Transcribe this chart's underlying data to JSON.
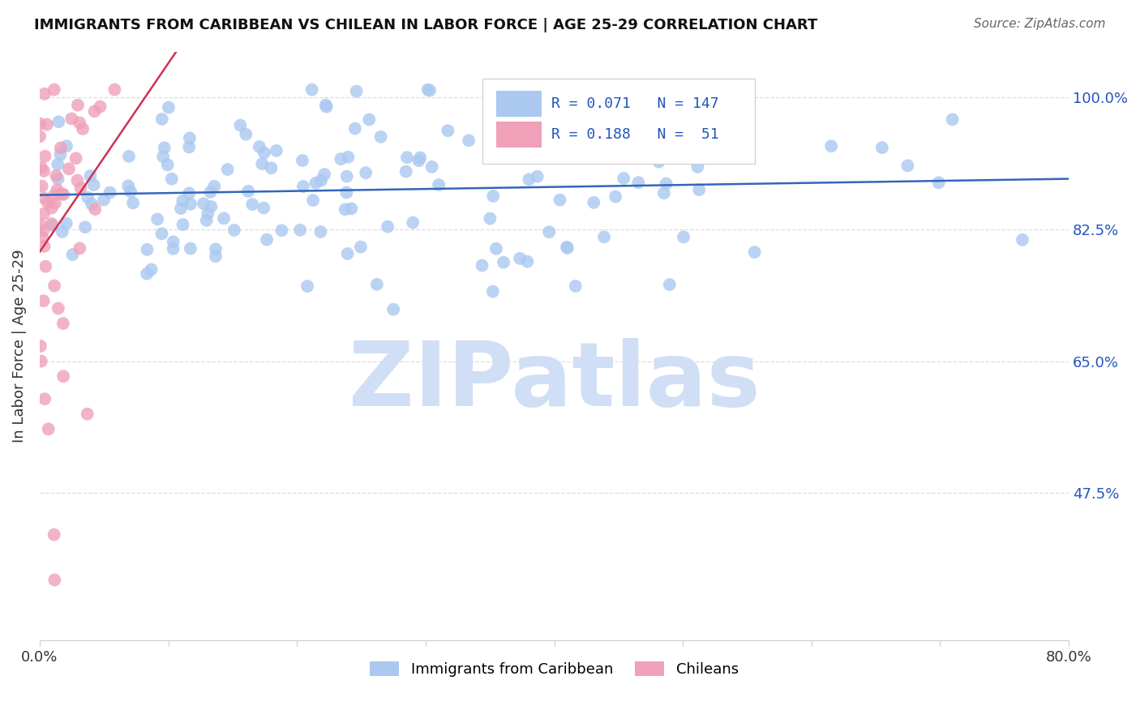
{
  "title": "IMMIGRANTS FROM CARIBBEAN VS CHILEAN IN LABOR FORCE | AGE 25-29 CORRELATION CHART",
  "source": "Source: ZipAtlas.com",
  "ylabel": "In Labor Force | Age 25-29",
  "ytick_labels": [
    "100.0%",
    "82.5%",
    "65.0%",
    "47.5%"
  ],
  "ytick_values": [
    1.0,
    0.825,
    0.65,
    0.475
  ],
  "xlim": [
    0.0,
    0.8
  ],
  "ylim": [
    0.28,
    1.06
  ],
  "caribbean_R": 0.071,
  "caribbean_N": 147,
  "chilean_R": 0.188,
  "chilean_N": 51,
  "caribbean_color": "#aac8f0",
  "chilean_color": "#f0a0b8",
  "caribbean_line_color": "#3366bb",
  "chilean_line_color": "#cc3355",
  "background_color": "#ffffff",
  "grid_color": "#dddddd",
  "watermark_text": "ZIPatlas",
  "watermark_color": "#d0dff5"
}
